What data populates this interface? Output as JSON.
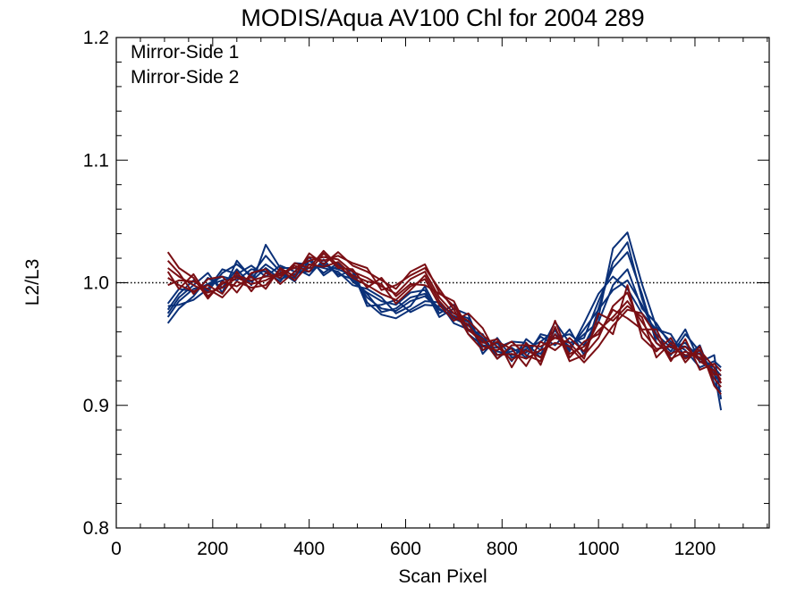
{
  "chart_data": {
    "type": "line",
    "title": "MODIS/Aqua AV100 Chl for 2004 289",
    "xlabel": "Scan Pixel",
    "ylabel": "L2/L3",
    "xlim": [
      0,
      1354
    ],
    "ylim": [
      0.8,
      1.2
    ],
    "xticks": [
      0,
      200,
      400,
      600,
      800,
      1000,
      1200
    ],
    "yticks": [
      0.8,
      0.9,
      1.0,
      1.1,
      1.2
    ],
    "xtick_labels": [
      "0",
      "200",
      "400",
      "600",
      "800",
      "1000",
      "1200"
    ],
    "ytick_labels": [
      "0.8",
      "0.9",
      "1.0",
      "1.1",
      "1.2"
    ],
    "reference_line": {
      "y": 1.0,
      "style": "dotted"
    },
    "legend_position": "top-left",
    "grid": false,
    "x": [
      107,
      130,
      160,
      190,
      220,
      250,
      280,
      310,
      340,
      370,
      400,
      430,
      460,
      490,
      520,
      550,
      580,
      610,
      640,
      670,
      700,
      730,
      760,
      790,
      820,
      850,
      880,
      910,
      940,
      970,
      1000,
      1030,
      1060,
      1090,
      1120,
      1150,
      1180,
      1210,
      1240,
      1254
    ],
    "series": [
      {
        "name": "Mirror-Side 1",
        "color": "#0a3078",
        "lines": [
          [
            0.972,
            0.985,
            0.995,
            0.998,
            1.002,
            1.005,
            1.001,
            1.012,
            1.003,
            1.007,
            1.012,
            1.014,
            1.011,
            1.006,
            0.988,
            0.979,
            0.977,
            0.985,
            0.989,
            0.978,
            0.973,
            0.968,
            0.952,
            0.944,
            0.941,
            0.946,
            0.952,
            0.961,
            0.946,
            0.962,
            0.978,
            0.994,
            1.002,
            0.982,
            0.958,
            0.947,
            0.951,
            0.938,
            0.931,
            0.924
          ],
          [
            0.978,
            0.991,
            1.002,
            0.993,
            1.008,
            1.015,
            1.006,
            1.022,
            1.009,
            1.001,
            1.018,
            1.008,
            1.016,
            1.001,
            0.992,
            0.985,
            0.982,
            0.992,
            0.994,
            0.972,
            0.979,
            0.974,
            0.945,
            0.951,
            0.936,
            0.954,
            0.945,
            0.968,
            0.951,
            0.955,
            0.985,
            1.012,
            1.025,
            0.991,
            0.951,
            0.941,
            0.958,
            0.944,
            0.925,
            0.918
          ],
          [
            0.967,
            0.979,
            0.989,
            1.004,
            0.996,
            1.011,
            0.998,
            1.031,
            1.012,
            1.012,
            1.006,
            1.019,
            1.005,
            1.011,
            0.984,
            0.974,
            0.971,
            0.978,
            0.985,
            0.984,
            0.967,
            0.962,
            0.958,
            0.938,
            0.947,
            0.939,
            0.958,
            0.955,
            0.958,
            0.949,
            0.972,
            1.028,
            1.041,
            0.999,
            0.964,
            0.952,
            0.945,
            0.931,
            0.936,
            0.931
          ],
          [
            0.983,
            0.995,
            0.993,
            0.999,
            1.005,
            1.002,
            1.011,
            1.009,
            1.001,
            1.016,
            1.015,
            1.012,
            1.009,
            0.998,
            0.995,
            0.988,
            0.975,
            0.981,
            0.997,
            0.975,
            0.982,
            0.958,
            0.949,
            0.947,
            0.952,
            0.951,
            0.939,
            0.962,
            0.944,
            0.967,
            0.991,
            1.005,
            0.995,
            0.975,
            0.962,
            0.958,
            0.939,
            0.949,
            0.918,
            0.911
          ],
          [
            0.975,
            0.988,
            0.998,
            1.008,
            0.992,
            1.018,
            1.004,
            1.015,
            1.007,
            1.004,
            1.021,
            1.006,
            1.014,
            1.009,
            0.981,
            0.982,
            0.986,
            0.976,
            0.982,
            0.981,
            0.975,
            0.971,
            0.942,
            0.955,
            0.939,
            0.943,
            0.956,
            0.949,
            0.962,
            0.941,
            0.979,
            1.017,
            1.033,
            0.987,
            0.955,
            0.944,
            0.962,
            0.935,
            0.941,
            0.905
          ],
          [
            0.981,
            0.982,
            0.986,
            0.995,
            1.011,
            1.007,
            1.014,
            1.005,
            1.014,
            1.009,
            1.009,
            1.016,
            1.007,
            1.003,
            0.991,
            0.976,
            0.979,
            0.988,
            0.991,
            0.979,
            0.971,
            0.965,
            0.955,
            0.941,
            0.944,
            0.948,
            0.942,
            0.958,
            0.948,
            0.958,
            0.968,
            0.998,
            1.011,
            0.979,
            0.967,
            0.949,
            0.948,
            0.942,
            0.928,
            0.896
          ]
        ]
      },
      {
        "name": "Mirror-Side 2",
        "color": "#7a0f14",
        "lines": [
          [
            1.012,
            1.005,
            0.998,
            0.992,
            0.996,
            1.004,
            0.999,
            1.002,
            1.008,
            1.012,
            1.018,
            1.021,
            1.019,
            1.009,
            1.004,
            0.997,
            0.991,
            1.003,
            1.009,
            0.988,
            0.975,
            0.969,
            0.957,
            0.948,
            0.937,
            0.945,
            0.939,
            0.958,
            0.942,
            0.948,
            0.961,
            0.972,
            0.985,
            0.968,
            0.951,
            0.942,
            0.948,
            0.936,
            0.928,
            0.921
          ],
          [
            1.025,
            1.012,
            1.004,
            0.987,
            1.001,
            0.997,
            1.005,
            0.995,
            1.012,
            1.005,
            1.024,
            1.015,
            1.025,
            1.014,
            1.009,
            1.002,
            0.995,
            1.009,
            1.015,
            0.992,
            0.981,
            0.962,
            0.951,
            0.954,
            0.931,
            0.951,
            0.933,
            0.964,
            0.936,
            0.941,
            0.955,
            0.981,
            0.992,
            0.961,
            0.946,
            0.948,
            0.941,
            0.942,
            0.922,
            0.915
          ],
          [
            1.004,
            0.998,
            0.993,
            0.998,
            0.991,
            1.009,
            0.993,
            1.008,
            1.004,
            1.016,
            1.012,
            1.026,
            1.014,
            1.004,
            0.998,
            0.991,
            0.986,
            0.997,
            1.003,
            0.982,
            0.969,
            0.975,
            0.963,
            0.941,
            0.942,
            0.938,
            0.945,
            0.951,
            0.948,
            0.935,
            0.948,
            0.965,
            0.978,
            0.975,
            0.957,
            0.936,
            0.954,
            0.929,
            0.934,
            0.928
          ],
          [
            1.018,
            1.008,
            0.991,
            1.003,
            1.005,
            0.992,
            1.008,
            1.011,
            0.999,
            1.009,
            1.021,
            1.018,
            1.022,
            1.016,
            1.012,
            0.994,
            0.998,
            1.006,
            1.012,
            0.995,
            0.978,
            0.958,
            0.945,
            0.952,
            0.946,
            0.932,
            0.952,
            0.945,
            0.955,
            0.944,
            0.968,
            0.958,
            0.998,
            0.955,
            0.944,
            0.955,
            0.935,
            0.948,
            0.916,
            0.909
          ],
          [
            0.998,
            1.002,
            1.001,
            0.995,
            0.988,
            1.001,
            0.996,
            0.998,
            1.011,
            1.002,
            1.015,
            1.013,
            1.017,
            1.006,
            1.001,
            0.999,
            0.983,
            0.994,
            1.006,
            0.985,
            0.972,
            0.966,
            0.948,
            0.945,
            0.952,
            0.941,
            0.936,
            0.969,
            0.939,
            0.952,
            0.958,
            0.978,
            0.971,
            0.962,
            0.962,
            0.938,
            0.944,
            0.939,
            0.925,
            0.925
          ],
          [
            1.009,
            0.995,
            1.007,
            0.989,
            0.999,
            1.006,
            1.002,
            1.005,
            1.006,
            1.014,
            1.009,
            1.024,
            1.012,
            1.011,
            0.996,
            1.004,
            0.989,
            0.999,
            0.998,
            0.991,
            0.985,
            0.961,
            0.954,
            0.938,
            0.949,
            0.949,
            0.948,
            0.955,
            0.951,
            0.938,
            0.975,
            0.969,
            0.981,
            0.972,
            0.939,
            0.951,
            0.938,
            0.945,
            0.931,
            0.918
          ]
        ]
      }
    ]
  }
}
